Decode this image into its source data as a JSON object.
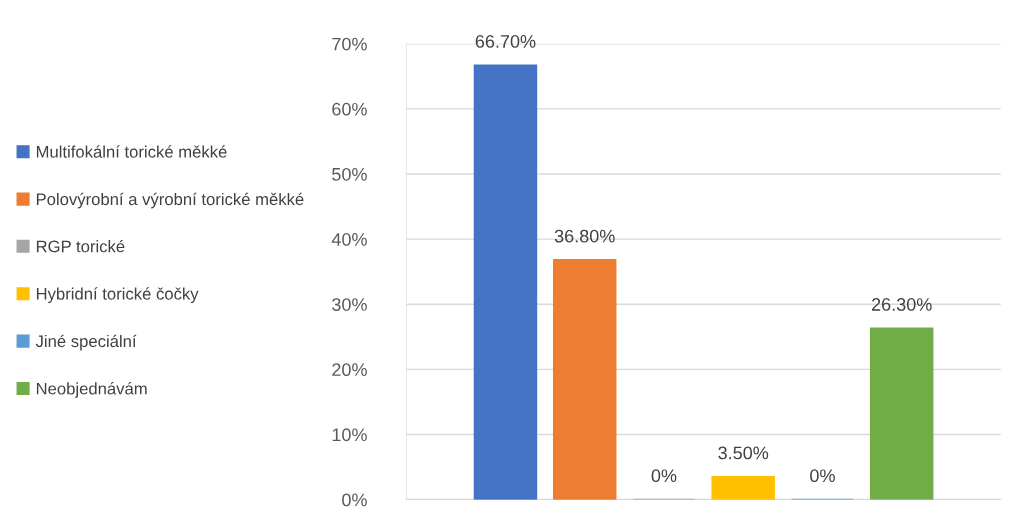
{
  "chart_data": {
    "type": "bar",
    "categories": [
      null
    ],
    "series": [
      {
        "name": "Multifokální torické měkké",
        "color": "#4472c4",
        "values": [
          66.7
        ],
        "value_labels": [
          "66.70%"
        ]
      },
      {
        "name": "Polovýrobní a výrobní torické měkké",
        "color": "#ed7d31",
        "values": [
          36.8
        ],
        "value_labels": [
          "36.80%"
        ]
      },
      {
        "name": "RGP torické",
        "color": "#a5a5a5",
        "values": [
          0
        ],
        "value_labels": [
          "0%"
        ]
      },
      {
        "name": "Hybridní torické čočky",
        "color": "#ffc000",
        "values": [
          3.5
        ],
        "value_labels": [
          "3.50%"
        ]
      },
      {
        "name": "Jiné speciální",
        "color": "#5b9bd5",
        "values": [
          0
        ],
        "value_labels": [
          "0%"
        ]
      },
      {
        "name": "Neobjednávám",
        "color": "#70ad47",
        "values": [
          26.3
        ],
        "value_labels": [
          "26.30%"
        ]
      }
    ],
    "ylim": [
      0,
      70
    ],
    "yticks": [
      {
        "value": 0,
        "label": "0%"
      },
      {
        "value": 10,
        "label": "10%"
      },
      {
        "value": 20,
        "label": "20%"
      },
      {
        "value": 30,
        "label": "30%"
      },
      {
        "value": 40,
        "label": "40%"
      },
      {
        "value": 50,
        "label": "50%"
      },
      {
        "value": 60,
        "label": "60%"
      },
      {
        "value": 70,
        "label": "70%"
      }
    ],
    "grid": "y",
    "legend": "left"
  }
}
